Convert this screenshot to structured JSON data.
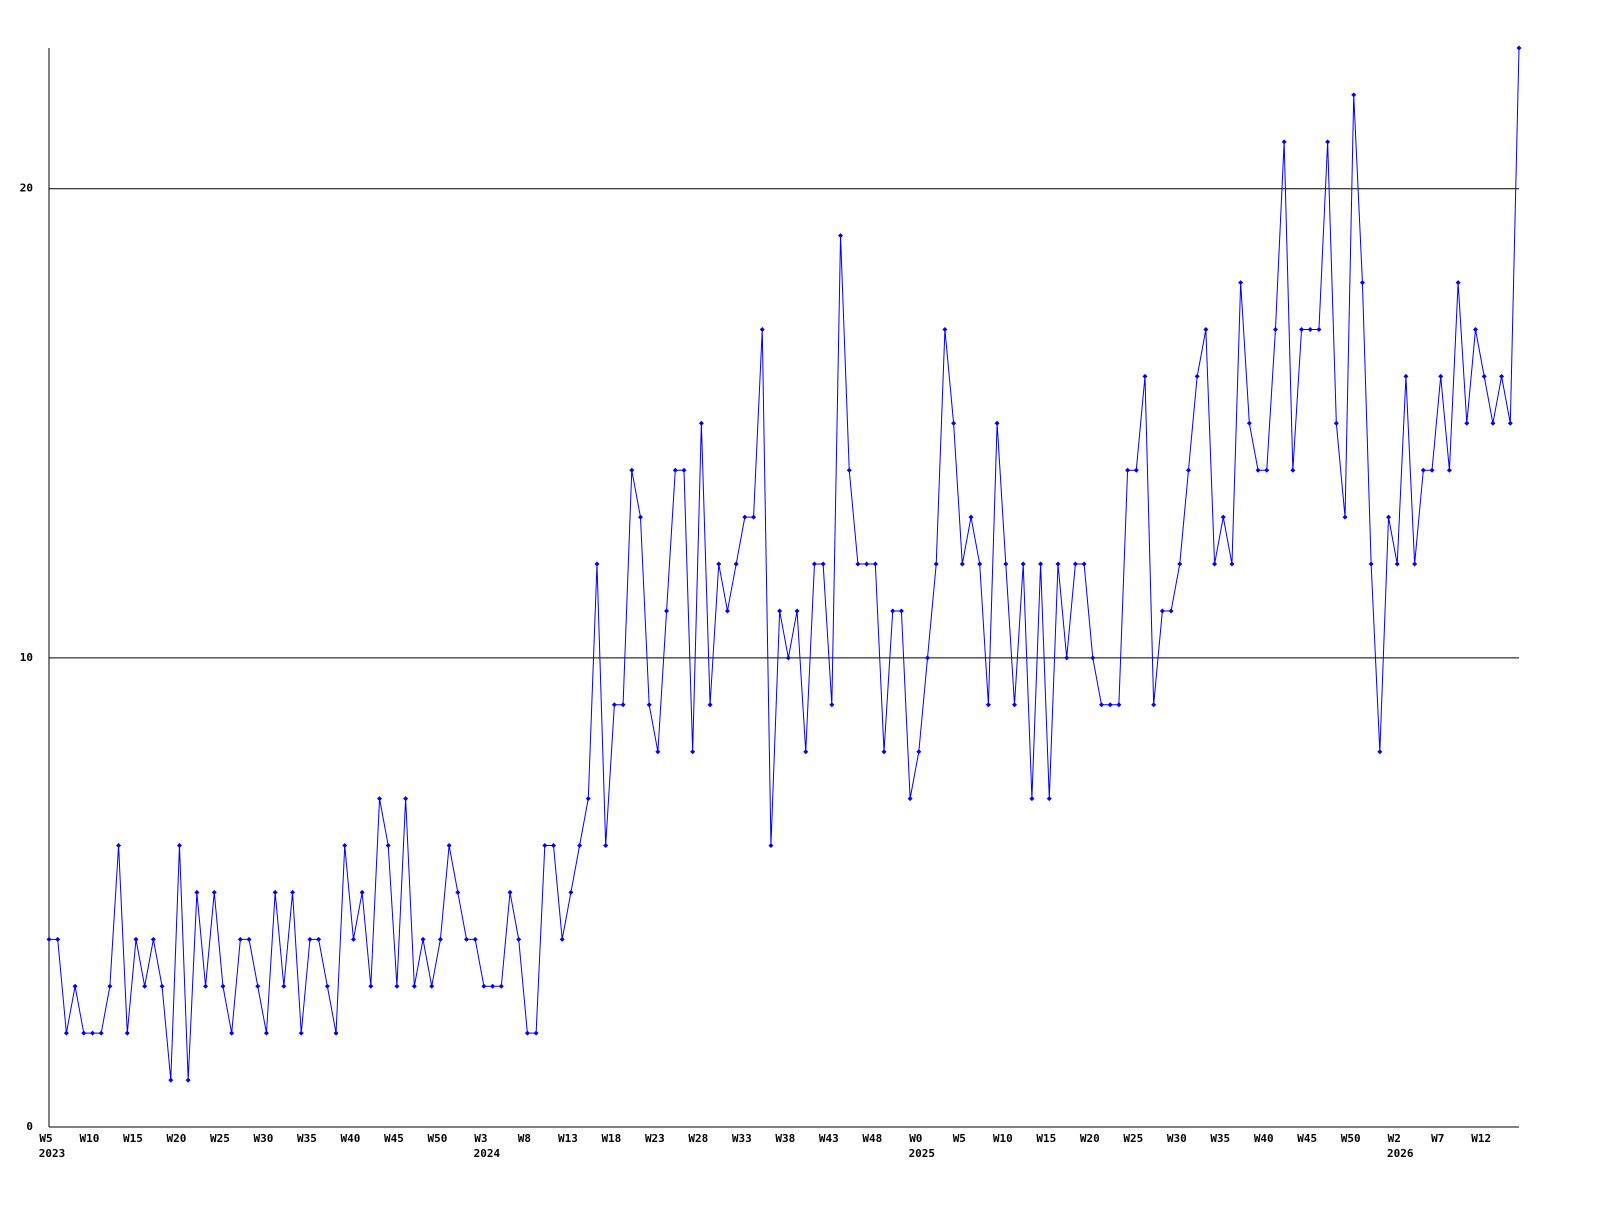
{
  "chart_data": {
    "type": "line",
    "categories": [
      "W5",
      null,
      null,
      null,
      null,
      "W10",
      null,
      null,
      null,
      null,
      "W15",
      null,
      null,
      null,
      null,
      "W20",
      null,
      null,
      null,
      null,
      "W25",
      null,
      null,
      null,
      null,
      "W30",
      null,
      null,
      null,
      null,
      "W35",
      null,
      null,
      null,
      null,
      "W40",
      null,
      null,
      null,
      null,
      "W45",
      null,
      null,
      null,
      null,
      "W50",
      null,
      null,
      null,
      null,
      "W3",
      null,
      null,
      null,
      null,
      "W8",
      null,
      null,
      null,
      null,
      "W13",
      null,
      null,
      null,
      null,
      "W18",
      null,
      null,
      null,
      null,
      "W23",
      null,
      null,
      null,
      null,
      "W28",
      null,
      null,
      null,
      null,
      "W33",
      null,
      null,
      null,
      null,
      "W38",
      null,
      null,
      null,
      null,
      "W43",
      null,
      null,
      null,
      null,
      "W48",
      null,
      null,
      null,
      null,
      "W0",
      null,
      null,
      null,
      null,
      "W5",
      null,
      null,
      null,
      null,
      "W10",
      null,
      null,
      null,
      null,
      "W15",
      null,
      null,
      null,
      null,
      "W20",
      null,
      null,
      null,
      null,
      "W25",
      null,
      null,
      null,
      null,
      "W30",
      null,
      null,
      null,
      null,
      "W35",
      null,
      null,
      null,
      null,
      "W40",
      null,
      null,
      null,
      null,
      "W45",
      null,
      null,
      null,
      null,
      "W50",
      null,
      null,
      null,
      null,
      "W2",
      null,
      null,
      null,
      null,
      "W7",
      null,
      null,
      null,
      null,
      "W12",
      null,
      null,
      null,
      null
    ],
    "years": [
      "2023",
      null,
      null,
      null,
      null,
      null,
      null,
      null,
      null,
      null,
      null,
      null,
      null,
      null,
      null,
      null,
      null,
      null,
      null,
      null,
      null,
      null,
      null,
      null,
      null,
      null,
      null,
      null,
      null,
      null,
      null,
      null,
      null,
      null,
      null,
      null,
      null,
      null,
      null,
      null,
      null,
      null,
      null,
      null,
      null,
      null,
      null,
      null,
      null,
      null,
      "2024",
      null,
      null,
      null,
      null,
      null,
      null,
      null,
      null,
      null,
      null,
      null,
      null,
      null,
      null,
      null,
      null,
      null,
      null,
      null,
      null,
      null,
      null,
      null,
      null,
      null,
      null,
      null,
      null,
      null,
      null,
      null,
      null,
      null,
      null,
      null,
      null,
      null,
      null,
      null,
      null,
      null,
      null,
      null,
      null,
      null,
      null,
      null,
      null,
      null,
      "2025",
      null,
      null,
      null,
      null,
      null,
      null,
      null,
      null,
      null,
      null,
      null,
      null,
      null,
      null,
      null,
      null,
      null,
      null,
      null,
      null,
      null,
      null,
      null,
      null,
      null,
      null,
      null,
      null,
      null,
      null,
      null,
      null,
      null,
      null,
      null,
      null,
      null,
      null,
      null,
      null,
      null,
      null,
      null,
      null,
      null,
      null,
      null,
      null,
      null,
      null,
      null,
      null,
      null,
      null,
      "2026",
      null,
      null,
      null,
      null,
      null,
      null,
      null,
      null,
      null,
      null,
      null,
      null,
      null,
      null
    ],
    "values": [
      4,
      4,
      2,
      3,
      2,
      2,
      2,
      3,
      6,
      2,
      4,
      3,
      4,
      3,
      1,
      6,
      1,
      5,
      3,
      5,
      3,
      2,
      4,
      4,
      3,
      2,
      5,
      3,
      5,
      2,
      4,
      4,
      3,
      2,
      6,
      4,
      5,
      3,
      7,
      6,
      3,
      7,
      3,
      4,
      3,
      4,
      6,
      5,
      4,
      4,
      3,
      3,
      3,
      5,
      4,
      2,
      2,
      6,
      6,
      4,
      5,
      6,
      7,
      12,
      6,
      9,
      9,
      14,
      13,
      9,
      8,
      11,
      14,
      14,
      8,
      15,
      9,
      12,
      11,
      12,
      13,
      13,
      17,
      6,
      11,
      10,
      11,
      8,
      12,
      12,
      9,
      19,
      14,
      12,
      12,
      12,
      8,
      11,
      11,
      7,
      8,
      10,
      12,
      17,
      15,
      12,
      13,
      12,
      9,
      15,
      12,
      9,
      12,
      7,
      12,
      7,
      12,
      10,
      12,
      12,
      10,
      9,
      9,
      9,
      14,
      14,
      16,
      9,
      11,
      11,
      12,
      14,
      16,
      17,
      12,
      13,
      12,
      18,
      15,
      14,
      14,
      17,
      21,
      14,
      17,
      17,
      17,
      21,
      15,
      13,
      22,
      18,
      12,
      8,
      13,
      12,
      16,
      12,
      14,
      14,
      16,
      14,
      18,
      15,
      17,
      16,
      15,
      16,
      15,
      23
    ],
    "color": "#0000ff",
    "ylim": [
      0,
      23
    ],
    "yticks": [
      0,
      10,
      20
    ],
    "grid": true
  }
}
